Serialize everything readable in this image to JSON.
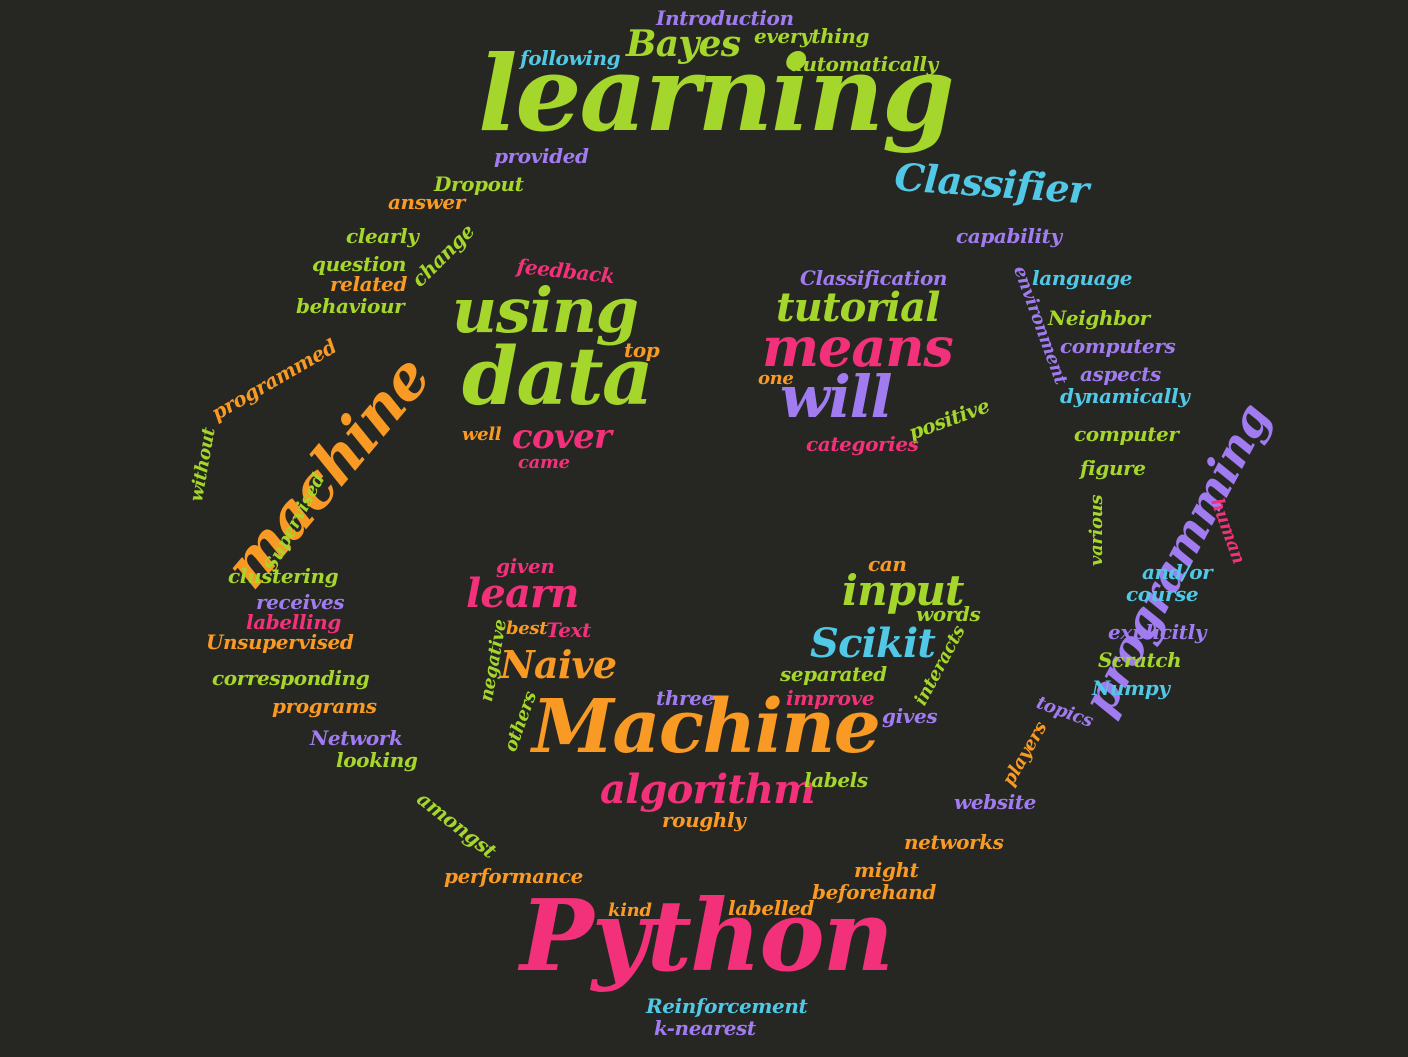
{
  "palette": {
    "background": "#262622",
    "green": "#a5d62c",
    "pink": "#f2317a",
    "orange": "#f99a25",
    "purple": "#a07cf0",
    "cyan": "#50c8e6"
  },
  "words": [
    {
      "text": "learning",
      "color": "green"
    },
    {
      "text": "Python",
      "color": "pink"
    },
    {
      "text": "Machine",
      "color": "orange"
    },
    {
      "text": "data",
      "color": "green"
    },
    {
      "text": "using",
      "color": "green"
    },
    {
      "text": "means",
      "color": "pink"
    },
    {
      "text": "will",
      "color": "purple"
    },
    {
      "text": "tutorial",
      "color": "green"
    },
    {
      "text": "machine",
      "color": "orange"
    },
    {
      "text": "programming",
      "color": "purple"
    },
    {
      "text": "Classifier",
      "color": "cyan"
    },
    {
      "text": "Bayes",
      "color": "green"
    },
    {
      "text": "algorithm",
      "color": "pink"
    },
    {
      "text": "Naive",
      "color": "orange"
    },
    {
      "text": "learn",
      "color": "pink"
    },
    {
      "text": "input",
      "color": "green"
    },
    {
      "text": "Scikit",
      "color": "cyan"
    },
    {
      "text": "cover",
      "color": "pink"
    },
    {
      "text": "Introduction",
      "color": "purple"
    },
    {
      "text": "everything",
      "color": "green"
    },
    {
      "text": "following",
      "color": "cyan"
    },
    {
      "text": "automatically",
      "color": "green"
    },
    {
      "text": "provided",
      "color": "purple"
    },
    {
      "text": "capability",
      "color": "purple"
    },
    {
      "text": "Dropout",
      "color": "green"
    },
    {
      "text": "answer",
      "color": "orange"
    },
    {
      "text": "clearly",
      "color": "green"
    },
    {
      "text": "change",
      "color": "green"
    },
    {
      "text": "question",
      "color": "green"
    },
    {
      "text": "related",
      "color": "orange"
    },
    {
      "text": "behaviour",
      "color": "green"
    },
    {
      "text": "feedback",
      "color": "pink"
    },
    {
      "text": "top",
      "color": "orange"
    },
    {
      "text": "well",
      "color": "orange"
    },
    {
      "text": "came",
      "color": "pink"
    },
    {
      "text": "Classification",
      "color": "purple"
    },
    {
      "text": "one",
      "color": "orange"
    },
    {
      "text": "positive",
      "color": "green"
    },
    {
      "text": "categories",
      "color": "pink"
    },
    {
      "text": "language",
      "color": "cyan"
    },
    {
      "text": "environment",
      "color": "purple"
    },
    {
      "text": "Neighbor",
      "color": "green"
    },
    {
      "text": "computers",
      "color": "purple"
    },
    {
      "text": "aspects",
      "color": "purple"
    },
    {
      "text": "dynamically",
      "color": "cyan"
    },
    {
      "text": "computer",
      "color": "green"
    },
    {
      "text": "figure",
      "color": "green"
    },
    {
      "text": "various",
      "color": "green"
    },
    {
      "text": "human",
      "color": "pink"
    },
    {
      "text": "and/or",
      "color": "cyan"
    },
    {
      "text": "course",
      "color": "cyan"
    },
    {
      "text": "explicitly",
      "color": "purple"
    },
    {
      "text": "Scratch",
      "color": "green"
    },
    {
      "text": "Numpy",
      "color": "cyan"
    },
    {
      "text": "topics",
      "color": "purple"
    },
    {
      "text": "players",
      "color": "orange"
    },
    {
      "text": "website",
      "color": "purple"
    },
    {
      "text": "networks",
      "color": "orange"
    },
    {
      "text": "might",
      "color": "orange"
    },
    {
      "text": "beforehand",
      "color": "orange"
    },
    {
      "text": "labelled",
      "color": "orange"
    },
    {
      "text": "kind",
      "color": "orange"
    },
    {
      "text": "performance",
      "color": "orange"
    },
    {
      "text": "amongst",
      "color": "green"
    },
    {
      "text": "looking",
      "color": "green"
    },
    {
      "text": "Network",
      "color": "purple"
    },
    {
      "text": "programs",
      "color": "orange"
    },
    {
      "text": "corresponding",
      "color": "green"
    },
    {
      "text": "Unsupervised",
      "color": "orange"
    },
    {
      "text": "labelling",
      "color": "pink"
    },
    {
      "text": "receives",
      "color": "purple"
    },
    {
      "text": "clustering",
      "color": "green"
    },
    {
      "text": "Supervised",
      "color": "green"
    },
    {
      "text": "without",
      "color": "green"
    },
    {
      "text": "programmed",
      "color": "orange"
    },
    {
      "text": "given",
      "color": "pink"
    },
    {
      "text": "negative",
      "color": "green"
    },
    {
      "text": "best",
      "color": "orange"
    },
    {
      "text": "Text",
      "color": "pink"
    },
    {
      "text": "others",
      "color": "green"
    },
    {
      "text": "three",
      "color": "purple"
    },
    {
      "text": "improve",
      "color": "pink"
    },
    {
      "text": "separated",
      "color": "green"
    },
    {
      "text": "can",
      "color": "orange"
    },
    {
      "text": "words",
      "color": "green"
    },
    {
      "text": "interacts",
      "color": "green"
    },
    {
      "text": "gives",
      "color": "purple"
    },
    {
      "text": "labels",
      "color": "green"
    },
    {
      "text": "roughly",
      "color": "orange"
    },
    {
      "text": "Reinforcement",
      "color": "cyan"
    },
    {
      "text": "k-nearest",
      "color": "purple"
    }
  ]
}
